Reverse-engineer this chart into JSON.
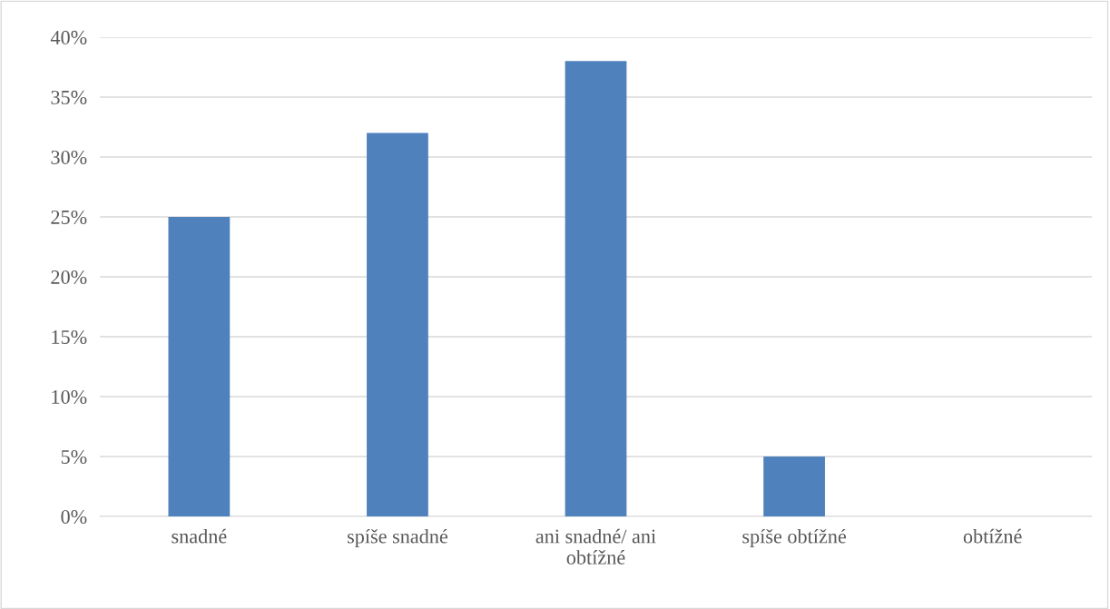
{
  "chart_data": {
    "type": "bar",
    "categories": [
      "snadné",
      "spíše snadné",
      "ani snadné/ ani obtížné",
      "spíše obtížné",
      "obtížné"
    ],
    "values": [
      25,
      32,
      38,
      5,
      0
    ],
    "color": "#4f81bd",
    "ylim": [
      0,
      40
    ],
    "yticks": [
      {
        "value": 0,
        "label": "0%"
      },
      {
        "value": 5,
        "label": "5%"
      },
      {
        "value": 10,
        "label": "10%"
      },
      {
        "value": 15,
        "label": "15%"
      },
      {
        "value": 20,
        "label": "20%"
      },
      {
        "value": 25,
        "label": "25%"
      },
      {
        "value": 30,
        "label": "30%"
      },
      {
        "value": 35,
        "label": "35%"
      },
      {
        "value": 40,
        "label": "40%"
      }
    ],
    "grid": "y"
  }
}
